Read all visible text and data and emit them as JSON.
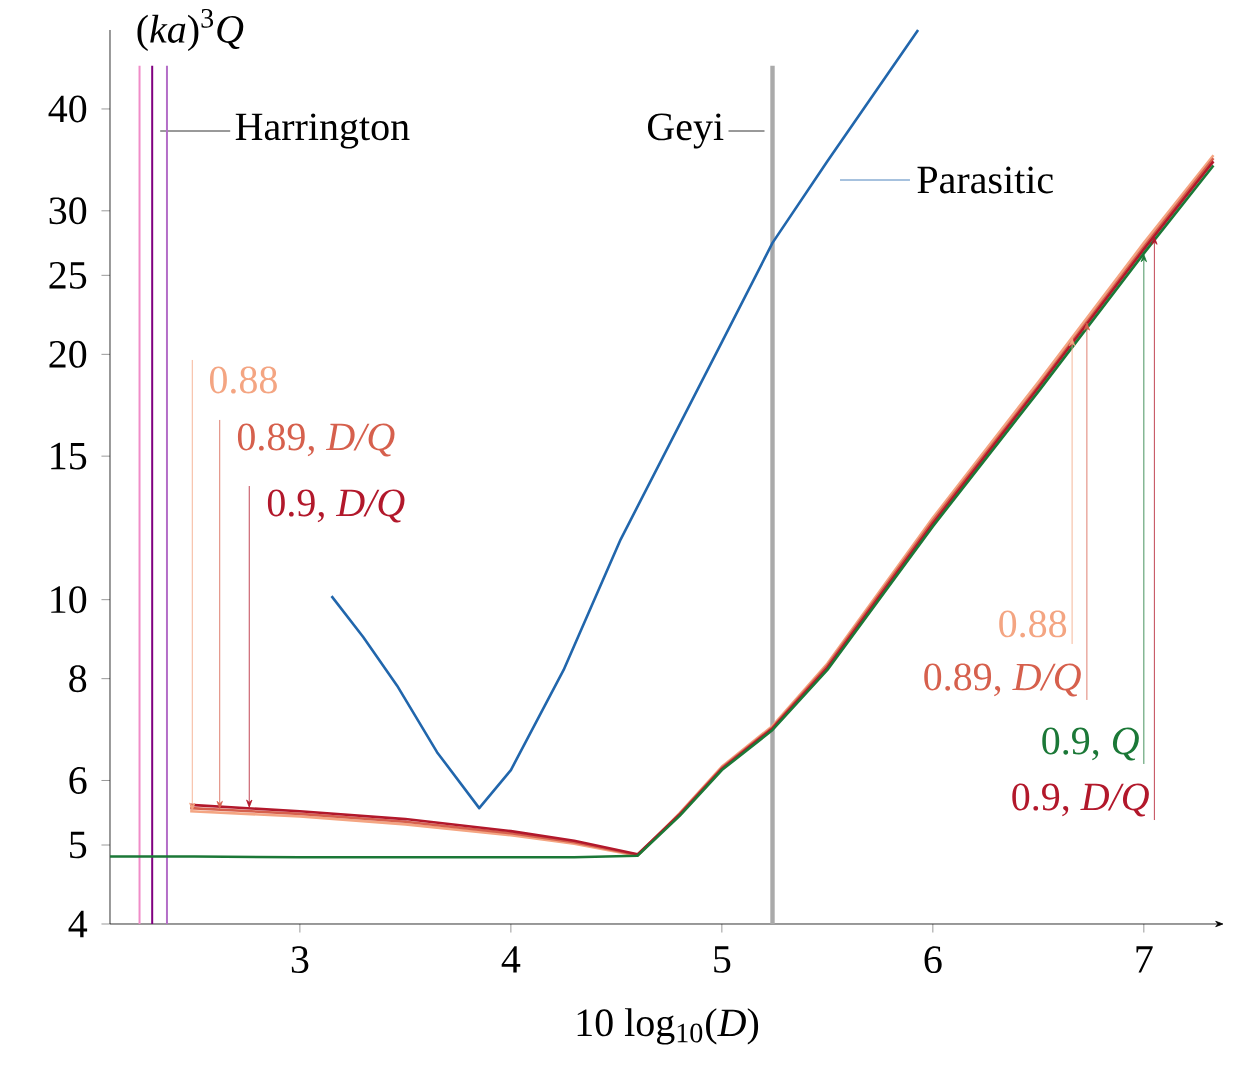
{
  "chart_data": {
    "type": "line",
    "xlabel": "10 log$_{10}$(*D*)",
    "ylabel": "(*ka*)$^{3}$*Q*",
    "log": "y",
    "xlim": [
      2.1,
      7.38
    ],
    "ylim": [
      4,
      50
    ],
    "xticks": [
      3,
      4,
      5,
      6,
      7
    ],
    "yticks": [
      4,
      5,
      6,
      8,
      10,
      15,
      20,
      25,
      30,
      40
    ],
    "series": [
      {
        "name": "Parasitic",
        "color": "#2166ac",
        "x": [
          3.15,
          3.3,
          3.46,
          3.65,
          3.85,
          4.0,
          4.25,
          4.52,
          5.0,
          5.24,
          5.5,
          5.93
        ],
        "values": [
          10.1,
          9.0,
          7.85,
          6.5,
          5.55,
          6.18,
          8.2,
          11.85,
          20.7,
          27.4,
          34.5,
          50
        ]
      },
      {
        "name": "0.88",
        "color": "#f4a582",
        "x": [
          2.48,
          3,
          3.5,
          4,
          4.3,
          4.6,
          4.8,
          5,
          5.24,
          5.5,
          6,
          6.5,
          7,
          7.33
        ],
        "values": [
          5.5,
          5.42,
          5.3,
          5.14,
          5.02,
          4.85,
          5.47,
          6.24,
          7.0,
          8.35,
          12.6,
          18.5,
          27.4,
          35.1
        ]
      },
      {
        "name": "0.89, *D/Q*",
        "color": "#d6604d",
        "x": [
          2.48,
          3,
          3.5,
          4,
          4.3,
          4.6,
          4.8,
          5,
          5.24,
          5.5,
          6,
          6.5,
          7,
          7.33
        ],
        "values": [
          5.55,
          5.46,
          5.34,
          5.17,
          5.04,
          4.86,
          5.46,
          6.22,
          6.97,
          8.3,
          12.5,
          18.3,
          27.1,
          34.8
        ]
      },
      {
        "name": "0.9, *D/Q*",
        "color": "#b2182b",
        "x": [
          2.48,
          3,
          3.5,
          4,
          4.3,
          4.6,
          4.8,
          5,
          5.24,
          5.5,
          6,
          6.5,
          7,
          7.33
        ],
        "values": [
          5.6,
          5.5,
          5.38,
          5.2,
          5.06,
          4.87,
          5.45,
          6.2,
          6.95,
          8.25,
          12.4,
          18.2,
          26.9,
          34.5
        ]
      },
      {
        "name": "0.9, *Q*",
        "color": "#1b7837",
        "x": [
          2.1,
          2.5,
          3,
          3.5,
          4,
          4.3,
          4.6,
          4.8,
          5,
          5.24,
          5.5,
          6,
          6.5,
          7,
          7.33
        ],
        "values": [
          4.84,
          4.84,
          4.83,
          4.83,
          4.83,
          4.83,
          4.85,
          5.43,
          6.18,
          6.92,
          8.2,
          12.3,
          18.0,
          26.6,
          34.1
        ]
      }
    ],
    "ref_lines": [
      {
        "axis": "x",
        "value": 2.24,
        "color": "#f08cc8"
      },
      {
        "axis": "x",
        "value": 2.3,
        "color": "#800080",
        "label": "Harrington"
      },
      {
        "axis": "x",
        "value": 2.37,
        "color": "#b46ec8"
      },
      {
        "axis": "x",
        "value": 5.24,
        "color": "#aaaaaa",
        "label": "Geyi"
      }
    ]
  }
}
